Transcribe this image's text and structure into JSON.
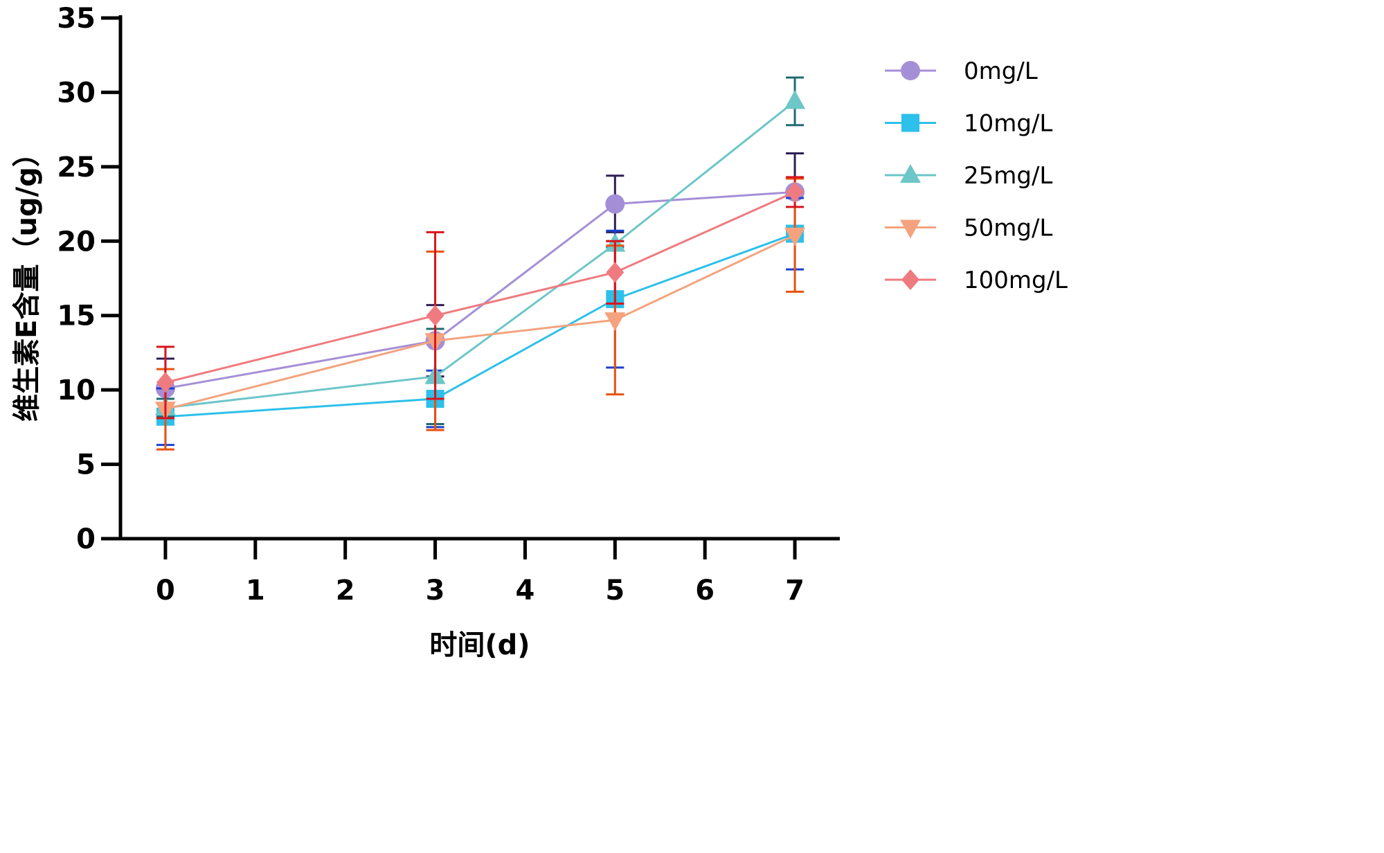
{
  "chart_data": {
    "type": "line",
    "title": "",
    "xlabel": "时间(d)",
    "ylabel": "维生素E含量（ug/g）",
    "xlim": [
      -0.5,
      7.5
    ],
    "ylim": [
      0,
      35
    ],
    "x_ticks": [
      0,
      1,
      2,
      3,
      4,
      5,
      6,
      7
    ],
    "y_ticks": [
      0,
      5,
      10,
      15,
      20,
      25,
      30,
      35
    ],
    "x": [
      0,
      3,
      5,
      7
    ],
    "legend_position": "right",
    "series": [
      {
        "name": "0mg/L",
        "marker": "circle",
        "line_color": "#a48fd6",
        "marker_color": "#a48fd6",
        "error_color": "#2d1f55",
        "values": [
          10.1,
          13.3,
          22.5,
          23.3
        ],
        "errors": [
          2.0,
          2.4,
          1.9,
          2.6
        ]
      },
      {
        "name": "10mg/L",
        "marker": "square",
        "line_color": "#2cc0ea",
        "marker_color": "#2cc0ea",
        "error_color": "#1a3fd0",
        "values": [
          8.2,
          9.4,
          16.1,
          20.5
        ],
        "errors": [
          1.9,
          1.9,
          4.6,
          2.4
        ]
      },
      {
        "name": "25mg/L",
        "marker": "triangle-up",
        "line_color": "#6dc6c8",
        "marker_color": "#6dc6c8",
        "error_color": "#1f6b70",
        "values": [
          8.8,
          10.9,
          19.8,
          29.4
        ],
        "errors": [
          0.6,
          3.2,
          0.2,
          1.6
        ]
      },
      {
        "name": "50mg/L",
        "marker": "triangle-down",
        "line_color": "#f4a37e",
        "marker_color": "#f4a37e",
        "error_color": "#e8520e",
        "values": [
          8.7,
          13.3,
          14.7,
          20.4
        ],
        "errors": [
          2.7,
          6.0,
          5.0,
          3.8
        ]
      },
      {
        "name": "100mg/L",
        "marker": "diamond",
        "line_color": "#ef7b80",
        "marker_color": "#ef7b80",
        "error_color": "#d8141c",
        "values": [
          10.5,
          15.0,
          17.9,
          23.3
        ],
        "errors": [
          2.4,
          5.6,
          2.1,
          1.0
        ]
      }
    ]
  }
}
